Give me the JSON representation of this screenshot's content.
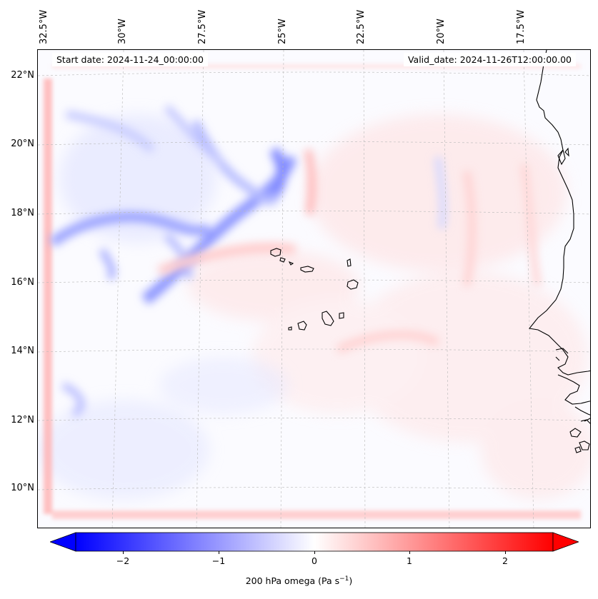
{
  "map": {
    "start_date_label": "Start date: 2024-11-24_00:00:00",
    "valid_date_label": "Valid_date: 2024-11-26T12:00:00.00",
    "longitude_labels": [
      "32.5°W",
      "30°W",
      "27.5°W",
      "25°W",
      "22.5°W",
      "20°W",
      "17.5°W"
    ],
    "latitude_labels": [
      "22°N",
      "20°N",
      "18°N",
      "16°N",
      "14°N",
      "12°N",
      "10°N"
    ],
    "islands": "Cape Verde Islands",
    "coastline": "West Africa (Senegal / Mauritania / Gambia / Guinea-Bissau)"
  },
  "colorbar": {
    "label": "200 hPa omega (Pa s⁻¹)",
    "label_main": "200 hPa omega (Pa s",
    "label_sup": "−1",
    "label_end": ")",
    "ticks": [
      "−2",
      "−1",
      "0",
      "1",
      "2"
    ],
    "tick_values": [
      -2,
      -1,
      0,
      1,
      2
    ],
    "range": [
      -2.5,
      2.5
    ],
    "colormap": "bwr",
    "color_min": "#0000ff",
    "color_mid": "#ffffff",
    "color_max": "#ff0000"
  }
}
